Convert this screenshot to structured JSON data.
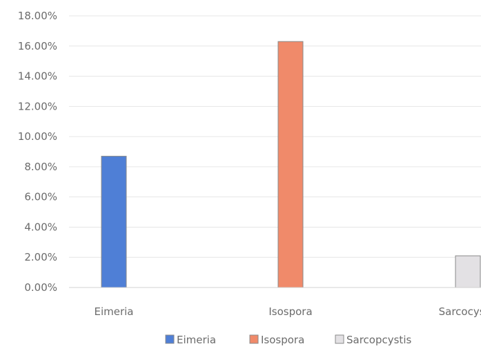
{
  "chart_data": {
    "type": "bar",
    "categories": [
      "Eimeria",
      "Isospora",
      "Sarcocystis"
    ],
    "series": [
      {
        "name": "Eimeria",
        "values": [
          8.7,
          null,
          null
        ],
        "color": "#4f7fd6"
      },
      {
        "name": "Isospora",
        "values": [
          null,
          16.3,
          null
        ],
        "color": "#f08a6a"
      },
      {
        "name": "Sarcopcystis",
        "values": [
          null,
          null,
          2.1
        ],
        "color": "#e3e1e4"
      }
    ],
    "yticks": [
      "0.00%",
      "2.00%",
      "4.00%",
      "6.00%",
      "8.00%",
      "10.00%",
      "12.00%",
      "14.00%",
      "16.00%",
      "18.00%"
    ],
    "ylim": [
      0,
      18
    ],
    "grid": true,
    "legend_position": "bottom",
    "title": "",
    "xlabel": "",
    "ylabel": ""
  }
}
